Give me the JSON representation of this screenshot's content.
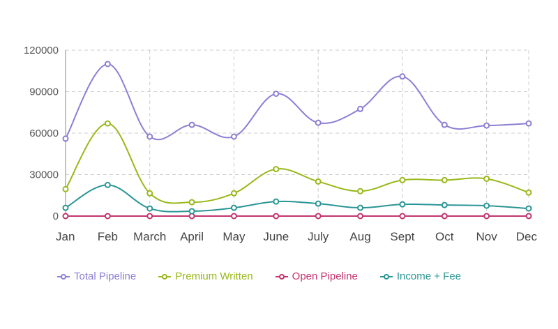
{
  "chart_data": {
    "type": "line",
    "title": "",
    "xlabel": "",
    "ylabel": "",
    "categories": [
      "Jan",
      "Feb",
      "March",
      "April",
      "May",
      "June",
      "July",
      "Aug",
      "Sept",
      "Oct",
      "Nov",
      "Dec"
    ],
    "ylim": [
      0,
      120000
    ],
    "yticks": [
      "0",
      "30000",
      "60000",
      "90000",
      "120000"
    ],
    "grid": true,
    "legend_position": "bottom-left",
    "series": [
      {
        "name": "Total Pipeline",
        "color": "#8b7fd4",
        "values": [
          56000,
          110000,
          57500,
          66000,
          57500,
          88500,
          67500,
          77500,
          101000,
          66000,
          65500,
          67000
        ]
      },
      {
        "name": "Premium Written",
        "color": "#99b81a",
        "values": [
          19500,
          67000,
          16500,
          10000,
          16500,
          34000,
          25000,
          18000,
          26000,
          26000,
          27000,
          17000
        ]
      },
      {
        "name": "Open Pipeline",
        "color": "#c2336e",
        "values": [
          0,
          0,
          0,
          0,
          0,
          0,
          0,
          0,
          0,
          0,
          0,
          0
        ]
      },
      {
        "name": "Income + Fee",
        "color": "#2a9596",
        "values": [
          6000,
          22500,
          5500,
          3500,
          6000,
          10500,
          9000,
          6000,
          8500,
          8000,
          7500,
          5500
        ]
      }
    ]
  }
}
